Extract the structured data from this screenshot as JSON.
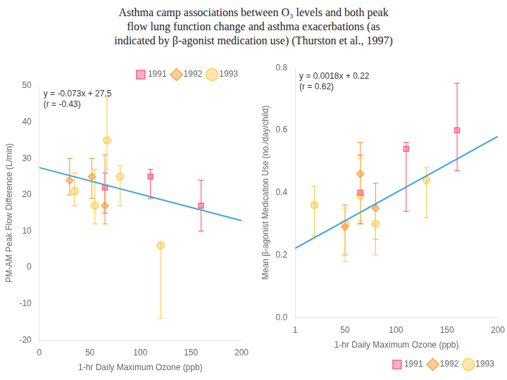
{
  "title": "Asthma camp associations between O₃ levels and both peak\nflow lung function change and asthma exacerbations (as\nindicated by β-agonist medication use) (Thurston et al., 1997)",
  "chart_data": [
    {
      "type": "scatter",
      "x_label": "1-hr Daily Maximum Ozone (ppb)",
      "y_label": "PM-AM Peak Flow Difference (L/min)",
      "xlim": [
        0,
        200
      ],
      "ylim": [
        -20,
        50
      ],
      "xticks": [
        0,
        50,
        100,
        150,
        200
      ],
      "yticks": [
        -20,
        -10,
        0,
        10,
        20,
        30,
        40,
        50
      ],
      "grid": false,
      "legend": "upper right",
      "annotations": [
        "y = -0.073x + 27.5",
        "(r = -0.43)"
      ],
      "series": [
        {
          "type": "line",
          "x": [
            0,
            200
          ],
          "values": [
            27.5,
            12.9
          ]
        },
        {
          "name": "1991",
          "marker": "square",
          "x": [
            65,
            110,
            160
          ],
          "values": [
            22,
            25,
            17
          ],
          "yerr_low": [
            7,
            6,
            7
          ],
          "yerr_high": [
            4,
            2,
            7
          ]
        },
        {
          "name": "1992",
          "marker": "diamond",
          "x": [
            30,
            52,
            65
          ],
          "values": [
            24,
            25,
            17
          ],
          "yerr_low": [
            4,
            6,
            5
          ],
          "yerr_high": [
            6,
            5,
            14
          ]
        },
        {
          "name": "1993",
          "marker": "circle",
          "x": [
            35,
            55,
            67,
            80,
            120
          ],
          "values": [
            21,
            17,
            35,
            25,
            6
          ],
          "yerr_low": [
            4,
            5,
            8,
            8,
            20
          ],
          "yerr_high": [
            5,
            10,
            12,
            3,
            1
          ]
        }
      ]
    },
    {
      "type": "scatter",
      "x_label": "1-hr Daily Maximum Ozone (ppb)",
      "y_label": "Mean β-agonist Medication Use (no./day/child)",
      "xlim": [
        1,
        200
      ],
      "ylim": [
        0,
        0.8
      ],
      "xticks": [
        1,
        50,
        100,
        150,
        200
      ],
      "yticks": [
        {
          "value": 0,
          "label": "0.0"
        },
        0.2,
        0.4,
        0.6,
        0.8
      ],
      "grid": false,
      "legend": "lower right",
      "annotations": [
        "y = 0.0018x + 0.22",
        "(r = 0.62)"
      ],
      "series": [
        {
          "type": "line",
          "x": [
            1,
            200
          ],
          "values": [
            0.2218,
            0.58
          ]
        },
        {
          "name": "1991",
          "marker": "square",
          "x": [
            65,
            110,
            160
          ],
          "values": [
            0.4,
            0.54,
            0.6
          ],
          "yerr_low": [
            0.1,
            0.2,
            0.13
          ],
          "yerr_high": [
            0.12,
            0.02,
            0.15
          ]
        },
        {
          "name": "1992",
          "marker": "diamond",
          "x": [
            50,
            65,
            80
          ],
          "values": [
            0.29,
            0.46,
            0.35
          ],
          "yerr_low": [
            0.09,
            0.16,
            0.1
          ],
          "yerr_high": [
            0.07,
            0.1,
            0.08
          ]
        },
        {
          "name": "1993",
          "marker": "circle",
          "x": [
            20,
            50,
            65,
            80,
            130
          ],
          "values": [
            0.36,
            0.3,
            0.39,
            0.3,
            0.44
          ],
          "yerr_low": [
            0.1,
            0.12,
            0.08,
            0.1,
            0.12
          ],
          "yerr_high": [
            0.06,
            0.05,
            0.12,
            0.06,
            0.04
          ]
        }
      ]
    }
  ]
}
